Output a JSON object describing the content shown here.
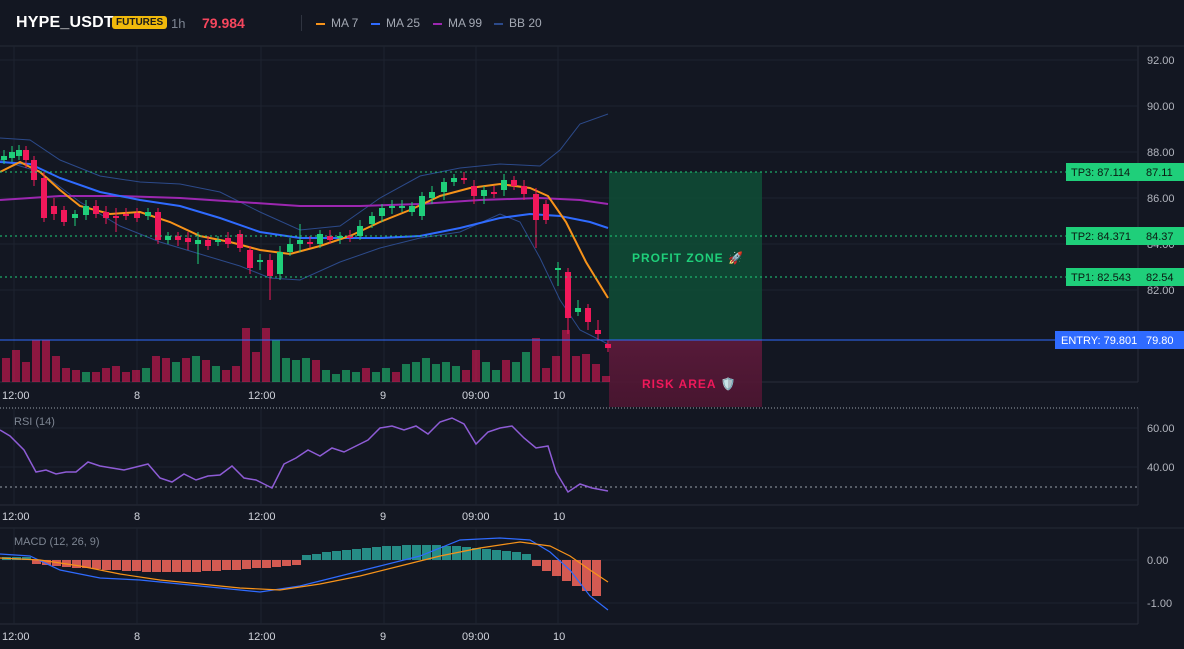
{
  "header": {
    "symbol": "HYPE_USDT",
    "badge": "FUTURES",
    "timeframe": "1h",
    "last_price": "79.984",
    "legend": [
      {
        "label": "MA 7",
        "color": "#f7931a"
      },
      {
        "label": "MA 25",
        "color": "#2f6bff"
      },
      {
        "label": "MA 99",
        "color": "#9c27b0"
      },
      {
        "label": "BB 20",
        "color": "#2c4a8a"
      }
    ]
  },
  "price_axis": {
    "ticks": [
      "92.00",
      "90.00",
      "88.00",
      "86.00",
      "84.00",
      "82.00"
    ]
  },
  "levels": [
    {
      "tag": "TP3: 87.114",
      "axis": "87.11",
      "color": "#1fcf7a"
    },
    {
      "tag": "TP2: 84.371",
      "axis": "84.37",
      "color": "#1fcf7a"
    },
    {
      "tag": "TP1: 82.543",
      "axis": "82.54",
      "color": "#1fcf7a"
    },
    {
      "tag": "ENTRY: 79.801",
      "axis": "79.80",
      "color": "#2f6bff"
    }
  ],
  "zones": {
    "profit": "PROFIT ZONE 🚀",
    "risk": "RISK AREA 🛡️"
  },
  "time_axis": [
    "12:00",
    "8",
    "12:00",
    "9",
    "09:00",
    "10"
  ],
  "rsi": {
    "label": "RSI (14)",
    "ticks": [
      "60.00",
      "40.00"
    ]
  },
  "macd": {
    "label": "MACD (12, 26, 9)",
    "ticks": [
      "0.00",
      "-1.00"
    ]
  },
  "colors": {
    "up": "#1fcf7a",
    "down": "#f0185a",
    "bg": "#131722",
    "grid": "#1e2330"
  }
}
